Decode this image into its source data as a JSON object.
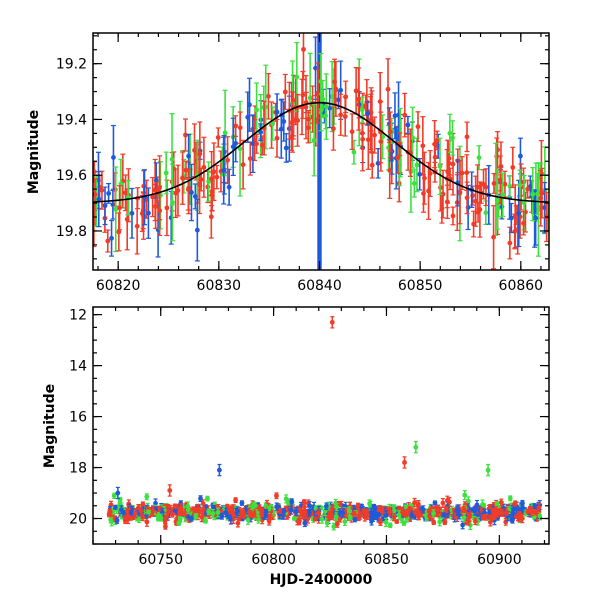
{
  "chart_data": [
    {
      "type": "scatter",
      "title": "",
      "xlabel": "",
      "ylabel": "Magnitude",
      "xlim": [
        60817.5,
        60862.8
      ],
      "ylim": [
        19.94,
        19.09
      ],
      "y_inverted": true,
      "xticks": [
        60820,
        60830,
        60840,
        60850,
        60860
      ],
      "yticks": [
        19.2,
        19.4,
        19.6,
        19.8
      ],
      "xtick_labels": [
        "60820",
        "60830",
        "60840",
        "60850",
        "60860"
      ],
      "ytick_labels": [
        "19.2",
        "19.4",
        "19.6",
        "19.8"
      ],
      "grid": false,
      "legend": "none",
      "colors": {
        "red": "#f03c28",
        "green": "#3ee040",
        "blue": "#1e5adc",
        "model": "#000000"
      },
      "model_curve": {
        "type": "gaussian",
        "peak_x": 60840,
        "peak_mag": 19.34,
        "baseline_mag": 19.7,
        "width_days": 7.5
      },
      "vertical_lines": [
        {
          "x": 60839.9,
          "color": "#1e5adc"
        },
        {
          "x": 60840.1,
          "color": "#1e5adc"
        }
      ]
    },
    {
      "type": "scatter",
      "title": "",
      "xlabel": "HJD-2400000",
      "ylabel": "Magnitude",
      "xlim": [
        60720,
        60922
      ],
      "ylim": [
        21.0,
        11.7
      ],
      "y_inverted": true,
      "xticks": [
        60750,
        60800,
        60850,
        60900
      ],
      "yticks": [
        12,
        14,
        16,
        18,
        20
      ],
      "xtick_labels": [
        "60750",
        "60800",
        "60850",
        "60900"
      ],
      "ytick_labels": [
        "12",
        "14",
        "16",
        "18",
        "20"
      ],
      "grid": false,
      "legend": "none",
      "colors": {
        "red": "#f03c28",
        "green": "#3ee040",
        "blue": "#1e5adc"
      },
      "highlight_points": [
        {
          "x": 60826,
          "y": 12.3,
          "color": "red"
        },
        {
          "x": 60863,
          "y": 17.2,
          "color": "green"
        },
        {
          "x": 60776,
          "y": 18.1,
          "color": "blue"
        },
        {
          "x": 60858,
          "y": 17.8,
          "color": "red"
        },
        {
          "x": 60895,
          "y": 18.1,
          "color": "green"
        },
        {
          "x": 60731,
          "y": 19.0,
          "color": "blue"
        },
        {
          "x": 60754,
          "y": 18.9,
          "color": "red"
        }
      ]
    }
  ]
}
